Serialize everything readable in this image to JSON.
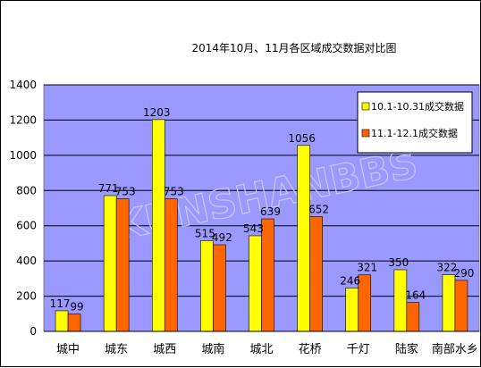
{
  "chart_data": {
    "type": "bar",
    "title": "2014年10月、11月各区域成交数据对比图",
    "categories": [
      "城中",
      "城东",
      "城西",
      "城南",
      "城北",
      "花桥",
      "千灯",
      "陆家",
      "南部水乡"
    ],
    "series": [
      {
        "name": "10.1-10.31成交数据",
        "values": [
          117,
          771,
          1203,
          515,
          543,
          1056,
          246,
          350,
          322
        ],
        "color": "#ffff00"
      },
      {
        "name": "11.1-12.1成交数据",
        "values": [
          99,
          753,
          753,
          492,
          639,
          652,
          321,
          164,
          290
        ],
        "color": "#ff6600"
      }
    ],
    "ylim": [
      0,
      1400
    ],
    "yticks": [
      0,
      200,
      400,
      600,
      800,
      1000,
      1200,
      1400
    ],
    "ytick_labels": [
      "0",
      "200",
      "400",
      "600",
      "800",
      "1000",
      "1200",
      "1400"
    ],
    "xlabel": "",
    "ylabel": "",
    "grid": true,
    "legend_position": "top-right",
    "plot_background": "#9999ff",
    "gridline_color": "#000000",
    "watermark": "KUNSHANBBS"
  }
}
